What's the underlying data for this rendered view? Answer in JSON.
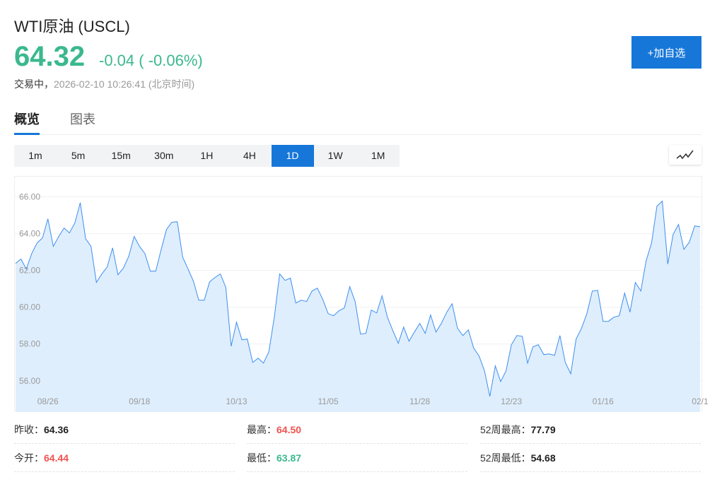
{
  "header": {
    "title": "WTI原油 (USCL)",
    "price": "64.32",
    "change": "-0.04 ( -0.06%)",
    "status_label": "交易中，",
    "timestamp": "2026-02-10 10:26:41 (北京时间)",
    "add_watchlist": "+加自选"
  },
  "tabs": [
    {
      "label": "概览",
      "active": true
    },
    {
      "label": "图表",
      "active": false
    }
  ],
  "periods": [
    {
      "label": "1m"
    },
    {
      "label": "5m"
    },
    {
      "label": "15m"
    },
    {
      "label": "30m"
    },
    {
      "label": "1H"
    },
    {
      "label": "4H"
    },
    {
      "label": "1D",
      "active": true
    },
    {
      "label": "1W"
    },
    {
      "label": "1M"
    }
  ],
  "chart_type_icon": "line-chart-icon",
  "colors": {
    "up": "#f0524f",
    "down": "#3bb88e",
    "accent": "#1677d8",
    "line": "#3d8ff0",
    "area": "#dfeefd"
  },
  "chart_data": {
    "type": "area",
    "ylim": [
      54.3,
      67.1
    ],
    "yticks": [
      "56.00",
      "58.00",
      "60.00",
      "62.00",
      "64.00",
      "66.00"
    ],
    "xticks": [
      "08/26",
      "09/18",
      "10/13",
      "11/05",
      "11/28",
      "12/23",
      "01/16",
      "02/1"
    ],
    "grid": true,
    "values": [
      62.38,
      62.62,
      62.08,
      62.92,
      63.5,
      63.77,
      64.81,
      63.31,
      63.85,
      64.31,
      64.04,
      64.58,
      65.69,
      63.73,
      63.31,
      61.35,
      61.81,
      62.19,
      63.23,
      61.77,
      62.12,
      62.77,
      63.85,
      63.31,
      62.92,
      61.96,
      61.96,
      63.12,
      64.23,
      64.62,
      64.65,
      62.73,
      62.08,
      61.42,
      60.38,
      60.38,
      61.38,
      61.62,
      61.81,
      61.08,
      57.88,
      59.19,
      58.23,
      58.27,
      57.0,
      57.23,
      56.96,
      57.58,
      59.46,
      61.81,
      61.46,
      61.58,
      60.23,
      60.38,
      60.31,
      60.88,
      61.04,
      60.42,
      59.65,
      59.54,
      59.81,
      59.96,
      61.12,
      60.31,
      58.54,
      58.58,
      59.85,
      59.69,
      60.62,
      59.46,
      58.73,
      58.04,
      58.92,
      58.15,
      58.65,
      59.12,
      58.58,
      59.58,
      58.65,
      59.12,
      59.73,
      60.19,
      58.85,
      58.46,
      58.77,
      57.77,
      57.35,
      56.54,
      55.15,
      56.81,
      55.96,
      56.54,
      57.96,
      58.46,
      58.42,
      56.96,
      57.85,
      57.96,
      57.42,
      57.46,
      57.38,
      58.46,
      57.0,
      56.38,
      58.27,
      58.85,
      59.65,
      60.88,
      60.92,
      59.23,
      59.23,
      59.46,
      59.54,
      60.77,
      59.73,
      61.35,
      60.88,
      62.54,
      63.5,
      65.5,
      65.77,
      62.35,
      63.96,
      64.5,
      63.15,
      63.54,
      64.42,
      64.38
    ]
  },
  "stats": [
    {
      "label": "昨收：",
      "value": "64.36",
      "tone": "neutral"
    },
    {
      "label": "最高：",
      "value": "64.50",
      "tone": "red"
    },
    {
      "label": "52周最高：",
      "value": "77.79",
      "tone": "neutral"
    },
    {
      "label": "今开：",
      "value": "64.44",
      "tone": "red"
    },
    {
      "label": "最低：",
      "value": "63.87",
      "tone": "green"
    },
    {
      "label": "52周最低：",
      "value": "54.68",
      "tone": "neutral"
    }
  ]
}
